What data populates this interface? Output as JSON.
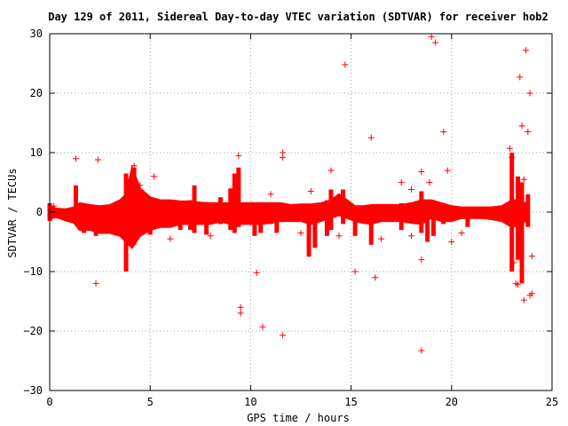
{
  "chart_data": {
    "type": "scatter",
    "title": "Day 129 of 2011, Sidereal Day-to-day VTEC variation (SDTVAR) for receiver hob2",
    "xlabel": "GPS time / hours",
    "ylabel": "SDTVAR / TECUs",
    "xlim": [
      0,
      25
    ],
    "ylim": [
      -30,
      30
    ],
    "xticks": [
      "0",
      "5",
      "10",
      "15",
      "20",
      "25"
    ],
    "yticks": [
      "30",
      "20",
      "10",
      "0",
      "−10",
      "−20",
      "−30"
    ],
    "grid": true,
    "marker": "+",
    "color": "#ff0000",
    "band": [
      [
        0.0,
        -1.2,
        1.2
      ],
      [
        0.3,
        -0.8,
        0.6
      ],
      [
        0.8,
        -1.4,
        0.5
      ],
      [
        1.2,
        -1.8,
        0.8
      ],
      [
        1.5,
        -3.0,
        1.5
      ],
      [
        2.0,
        -3.0,
        1.2
      ],
      [
        2.5,
        -3.5,
        1.0
      ],
      [
        3.0,
        -3.5,
        1.2
      ],
      [
        3.5,
        -4.0,
        2.0
      ],
      [
        3.8,
        -5.0,
        3.0
      ],
      [
        4.1,
        -6.0,
        7.5
      ],
      [
        4.5,
        -4.0,
        4.0
      ],
      [
        5.0,
        -3.0,
        2.5
      ],
      [
        5.5,
        -2.5,
        2.0
      ],
      [
        6.0,
        -2.5,
        2.0
      ],
      [
        6.5,
        -2.0,
        1.8
      ],
      [
        7.0,
        -2.0,
        1.8
      ],
      [
        7.5,
        -2.0,
        1.6
      ],
      [
        8.0,
        -2.0,
        1.5
      ],
      [
        8.5,
        -1.6,
        1.5
      ],
      [
        9.0,
        -2.0,
        1.5
      ],
      [
        9.5,
        -2.0,
        1.5
      ],
      [
        10.0,
        -2.0,
        1.5
      ],
      [
        10.5,
        -2.0,
        1.5
      ],
      [
        11.0,
        -1.8,
        1.5
      ],
      [
        11.5,
        -1.5,
        1.5
      ],
      [
        12.0,
        -1.5,
        1.2
      ],
      [
        12.5,
        -1.5,
        1.3
      ],
      [
        13.0,
        -2.0,
        1.3
      ],
      [
        13.5,
        -1.5,
        1.5
      ],
      [
        14.0,
        -1.0,
        2.0
      ],
      [
        14.4,
        -0.5,
        3.0
      ],
      [
        14.8,
        -1.0,
        2.0
      ],
      [
        15.2,
        -1.5,
        1.0
      ],
      [
        15.6,
        -1.8,
        1.0
      ],
      [
        16.0,
        -2.0,
        1.2
      ],
      [
        16.5,
        -1.5,
        1.2
      ],
      [
        17.0,
        -1.5,
        1.2
      ],
      [
        17.5,
        -1.5,
        1.2
      ],
      [
        18.0,
        -1.8,
        1.5
      ],
      [
        18.5,
        -2.0,
        2.0
      ],
      [
        19.0,
        -1.0,
        2.0
      ],
      [
        19.5,
        -1.5,
        1.5
      ],
      [
        20.0,
        -1.5,
        1.0
      ],
      [
        20.5,
        -1.0,
        0.8
      ],
      [
        21.0,
        -1.0,
        0.8
      ],
      [
        21.5,
        -1.0,
        0.8
      ],
      [
        22.0,
        -1.2,
        0.8
      ],
      [
        22.5,
        -1.5,
        1.0
      ],
      [
        23.0,
        -2.5,
        2.0
      ],
      [
        23.5,
        -2.0,
        2.0
      ],
      [
        23.8,
        -1.0,
        1.0
      ]
    ],
    "spikes": [
      [
        0.0,
        -1.5,
        1.5
      ],
      [
        1.3,
        -1.0,
        4.5
      ],
      [
        1.5,
        -3.0,
        1.5
      ],
      [
        1.7,
        -3.5,
        1.0
      ],
      [
        2.3,
        -4.0,
        0.5
      ],
      [
        3.8,
        -10.0,
        6.5
      ],
      [
        4.2,
        -5.5,
        7.5
      ],
      [
        5.0,
        -3.8,
        1.5
      ],
      [
        6.5,
        -3.0,
        1.0
      ],
      [
        7.0,
        -3.0,
        2.0
      ],
      [
        7.2,
        -3.5,
        4.5
      ],
      [
        7.8,
        -3.8,
        1.0
      ],
      [
        8.5,
        -2.0,
        2.5
      ],
      [
        9.0,
        -3.0,
        4.0
      ],
      [
        9.2,
        -3.5,
        6.5
      ],
      [
        9.4,
        -2.5,
        7.5
      ],
      [
        10.2,
        -4.0,
        1.0
      ],
      [
        10.5,
        -3.5,
        0.5
      ],
      [
        11.0,
        -2.0,
        1.0
      ],
      [
        11.3,
        -3.5,
        1.0
      ],
      [
        12.9,
        -7.5,
        1.0
      ],
      [
        13.2,
        -6.0,
        0.5
      ],
      [
        13.8,
        -4.0,
        2.0
      ],
      [
        14.0,
        -3.0,
        3.8
      ],
      [
        14.6,
        -2.0,
        3.8
      ],
      [
        15.2,
        -4.0,
        1.0
      ],
      [
        16.0,
        -5.5,
        1.0
      ],
      [
        17.5,
        -3.0,
        1.5
      ],
      [
        18.5,
        -3.5,
        3.5
      ],
      [
        18.8,
        -5.0,
        1.5
      ],
      [
        19.1,
        -4.0,
        2.0
      ],
      [
        19.6,
        -2.0,
        1.5
      ],
      [
        20.8,
        -2.5,
        0.5
      ],
      [
        23.0,
        -10.0,
        10.0
      ],
      [
        23.3,
        -8.0,
        6.0
      ],
      [
        23.5,
        -12.0,
        5.0
      ],
      [
        23.8,
        -2.5,
        3.0
      ]
    ],
    "outliers": [
      [
        2.3,
        -12.0
      ],
      [
        2.4,
        8.8
      ],
      [
        1.3,
        9.0
      ],
      [
        4.2,
        7.8
      ],
      [
        4.5,
        4.5
      ],
      [
        5.2,
        6.0
      ],
      [
        9.4,
        9.5
      ],
      [
        9.5,
        -16.0
      ],
      [
        9.5,
        -17.0
      ],
      [
        10.3,
        -10.2
      ],
      [
        10.6,
        -19.3
      ],
      [
        11.0,
        3.0
      ],
      [
        11.6,
        10.0
      ],
      [
        11.6,
        9.2
      ],
      [
        11.6,
        -20.7
      ],
      [
        13.0,
        3.5
      ],
      [
        14.0,
        7.0
      ],
      [
        14.7,
        24.8
      ],
      [
        15.2,
        -10.0
      ],
      [
        16.0,
        12.5
      ],
      [
        16.2,
        -11.0
      ],
      [
        17.5,
        5.0
      ],
      [
        18.0,
        3.8
      ],
      [
        18.5,
        -23.3
      ],
      [
        18.5,
        6.8
      ],
      [
        18.5,
        -8.0
      ],
      [
        18.9,
        5.0
      ],
      [
        19.0,
        29.5
      ],
      [
        19.2,
        28.5
      ],
      [
        19.6,
        13.5
      ],
      [
        19.8,
        7.0
      ],
      [
        20.5,
        -3.5
      ],
      [
        22.9,
        10.7
      ],
      [
        23.0,
        9.2
      ],
      [
        23.1,
        -8.5
      ],
      [
        23.2,
        -12.0
      ],
      [
        23.3,
        -12.2
      ],
      [
        23.4,
        22.7
      ],
      [
        23.5,
        14.5
      ],
      [
        23.6,
        -14.8
      ],
      [
        23.7,
        27.2
      ],
      [
        23.8,
        13.5
      ],
      [
        23.9,
        20.0
      ],
      [
        23.9,
        -14.0
      ],
      [
        24.0,
        -13.7
      ],
      [
        24.0,
        -7.4
      ],
      [
        23.4,
        -5.0
      ],
      [
        23.6,
        5.5
      ],
      [
        20.0,
        -5.0
      ],
      [
        18.0,
        -4.0
      ],
      [
        16.5,
        -4.5
      ],
      [
        14.4,
        -4.0
      ],
      [
        12.5,
        -3.5
      ],
      [
        8.0,
        -4.0
      ],
      [
        6.0,
        -4.5
      ],
      [
        0.2,
        1.0
      ]
    ]
  }
}
